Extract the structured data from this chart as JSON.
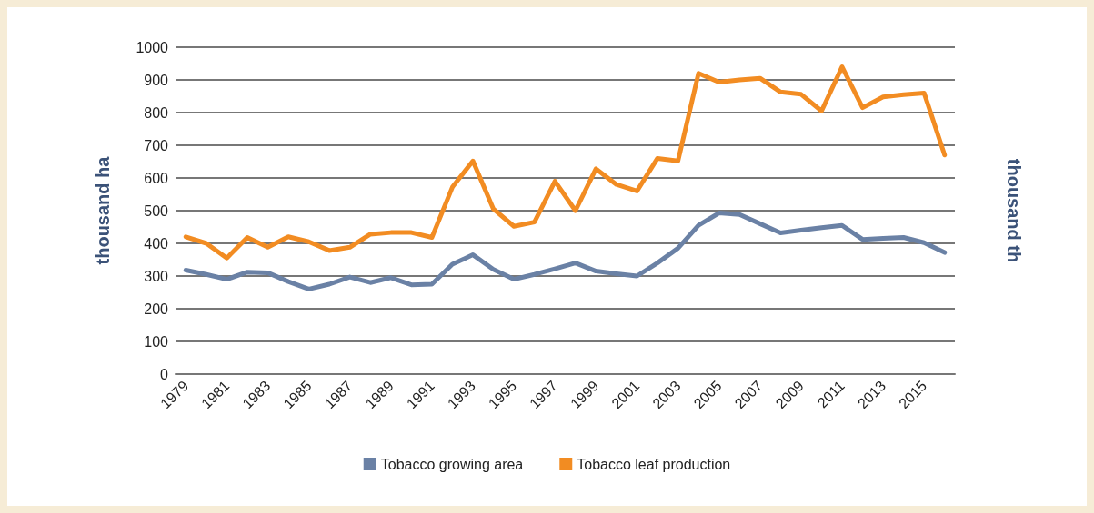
{
  "chart_data": {
    "type": "line",
    "categories": [
      "1979",
      null,
      "1981",
      null,
      "1983",
      null,
      "1985",
      null,
      "1987",
      null,
      "1989",
      null,
      "1991",
      null,
      "1993",
      null,
      "1995",
      null,
      "1997",
      null,
      "1999",
      null,
      "2001",
      null,
      "2003",
      null,
      "2005",
      null,
      "2007",
      null,
      "2009",
      null,
      "2011",
      null,
      "2013",
      null,
      "2015",
      null
    ],
    "series": [
      {
        "name": "Tobacco growing area",
        "color": "#6a81a5",
        "values": [
          318,
          305,
          290,
          312,
          310,
          283,
          260,
          275,
          297,
          280,
          295,
          273,
          275,
          336,
          365,
          320,
          290,
          305,
          322,
          340,
          315,
          307,
          300,
          340,
          385,
          455,
          493,
          488,
          460,
          432,
          440,
          448,
          455,
          412,
          415,
          418,
          402,
          372
        ]
      },
      {
        "name": "Tobacco leaf production",
        "color": "#f28c22",
        "values": [
          420,
          400,
          355,
          418,
          388,
          420,
          405,
          378,
          388,
          428,
          433,
          433,
          418,
          572,
          652,
          505,
          452,
          465,
          590,
          500,
          628,
          580,
          560,
          660,
          652,
          920,
          893,
          900,
          905,
          863,
          856,
          805,
          940,
          815,
          848,
          855,
          860,
          670
        ]
      }
    ],
    "ylabel": "thousand ha",
    "y2label": "thousand th",
    "ylim": [
      0,
      1000
    ],
    "yticks": [
      0,
      100,
      200,
      300,
      400,
      500,
      600,
      700,
      800,
      900,
      1000
    ],
    "grid": "y",
    "legend": "bottom",
    "marker": "none",
    "line_style": "solid"
  }
}
